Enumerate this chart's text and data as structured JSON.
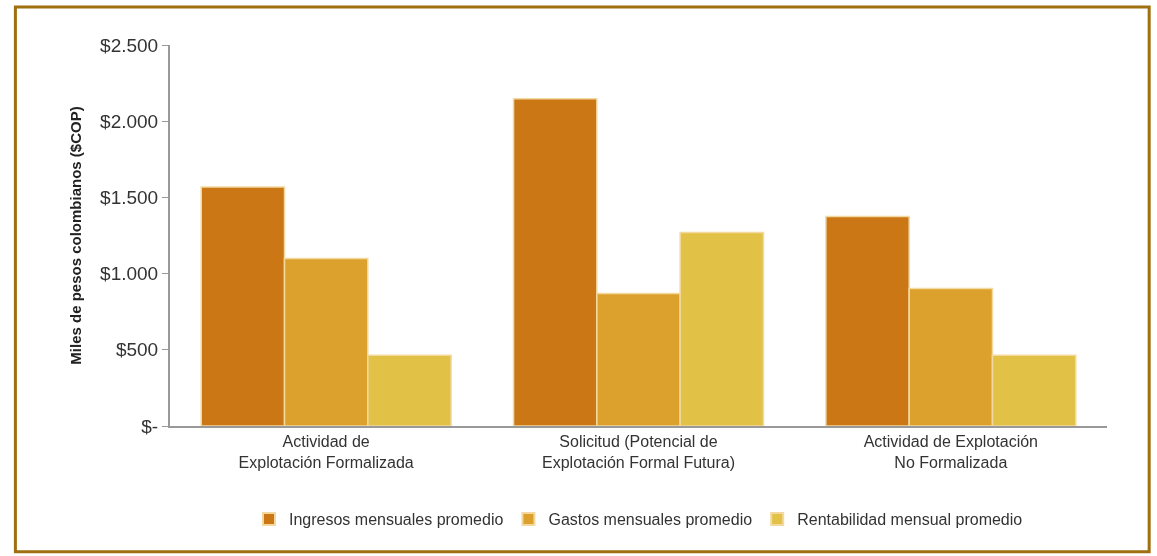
{
  "chart_data": {
    "type": "bar",
    "ylabel": "Miles de pesos colombianos ($COP)",
    "categories": [
      "Actividad de\nExplotación Formalizada",
      "Solicitud (Potencial de\nExplotación Formal Futura)",
      "Actividad de Explotación\nNo Formalizada"
    ],
    "series": [
      {
        "name": "Ingresos mensuales promedio",
        "color": "#cb7716",
        "values": [
          1568,
          2148,
          1374
        ]
      },
      {
        "name": "Gastos mensuales promedio",
        "color": "#dca02c",
        "values": [
          1099,
          869,
          902
        ]
      },
      {
        "name": "Rentabilidad mensual promedio",
        "color": "#e2c246",
        "values": [
          465,
          1269,
          464
        ]
      }
    ],
    "ylim": [
      0,
      2500
    ],
    "yticks": [
      {
        "value": 0,
        "label": "$-"
      },
      {
        "value": 500,
        "label": "$500"
      },
      {
        "value": 1000,
        "label": "$1.000"
      },
      {
        "value": 1500,
        "label": "$1.500"
      },
      {
        "value": 2000,
        "label": "$2.000"
      },
      {
        "value": 2500,
        "label": "$2.500"
      }
    ],
    "legend": "bottom"
  }
}
